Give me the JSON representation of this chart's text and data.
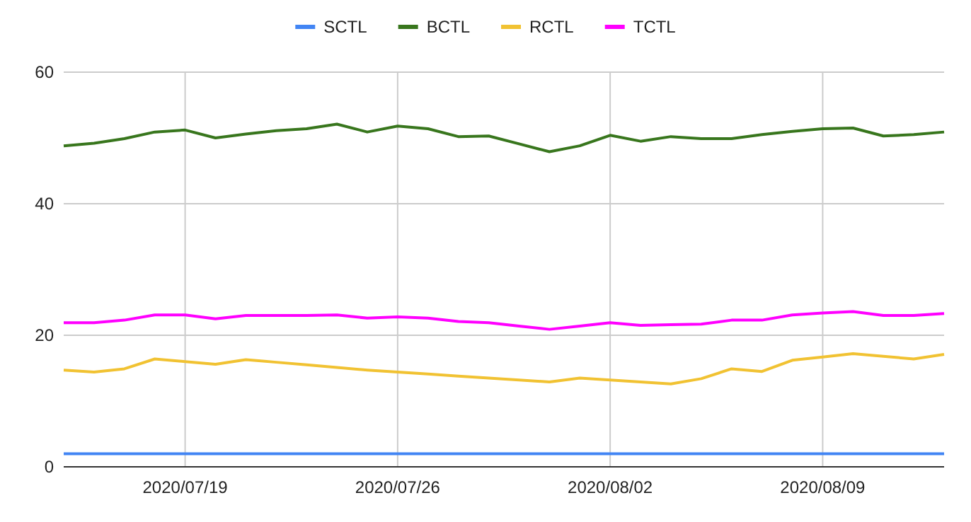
{
  "chart_data": {
    "type": "line",
    "x": [
      "2020-07-15",
      "2020-07-16",
      "2020-07-17",
      "2020-07-18",
      "2020-07-19",
      "2020-07-20",
      "2020-07-21",
      "2020-07-22",
      "2020-07-23",
      "2020-07-24",
      "2020-07-25",
      "2020-07-26",
      "2020-07-27",
      "2020-07-28",
      "2020-07-29",
      "2020-07-30",
      "2020-07-31",
      "2020-08-01",
      "2020-08-02",
      "2020-08-03",
      "2020-08-04",
      "2020-08-05",
      "2020-08-06",
      "2020-08-07",
      "2020-08-08",
      "2020-08-09",
      "2020-08-10",
      "2020-08-11",
      "2020-08-12",
      "2020-08-13"
    ],
    "series": [
      {
        "name": "SCTL",
        "color": "#4285f4",
        "values": [
          2,
          2,
          2,
          2,
          2,
          2,
          2,
          2,
          2,
          2,
          2,
          2,
          2,
          2,
          2,
          2,
          2,
          2,
          2,
          2,
          2,
          2,
          2,
          2,
          2,
          2,
          2,
          2,
          2,
          2
        ]
      },
      {
        "name": "BCTL",
        "color": "#38761d",
        "values": [
          48.8,
          49.2,
          49.9,
          50.9,
          51.2,
          50.0,
          50.6,
          51.1,
          51.4,
          52.1,
          50.9,
          51.8,
          51.4,
          50.2,
          50.3,
          49.1,
          47.9,
          48.8,
          50.4,
          49.5,
          50.2,
          49.9,
          49.9,
          50.5,
          51.0,
          51.4,
          51.5,
          50.3,
          50.5,
          50.9
        ]
      },
      {
        "name": "RCTL",
        "color": "#f1c232",
        "values": [
          14.7,
          14.4,
          14.9,
          16.4,
          16.0,
          15.6,
          16.3,
          15.9,
          15.5,
          15.1,
          14.7,
          14.4,
          14.1,
          13.8,
          13.5,
          13.2,
          12.9,
          13.5,
          13.2,
          12.9,
          12.6,
          13.4,
          14.9,
          14.5,
          16.2,
          16.7,
          17.2,
          16.8,
          16.4,
          17.1
        ]
      },
      {
        "name": "TCTL",
        "color": "#ff00ff",
        "values": [
          21.9,
          21.9,
          22.3,
          23.1,
          23.1,
          22.5,
          23.0,
          23.0,
          23.0,
          23.1,
          22.6,
          22.8,
          22.6,
          22.1,
          21.9,
          21.4,
          20.9,
          21.4,
          21.9,
          21.5,
          21.6,
          21.7,
          22.3,
          22.3,
          23.1,
          23.4,
          23.6,
          23.0,
          23.0,
          23.3
        ]
      }
    ],
    "xlim": [
      "2020-07-15",
      "2020-08-13"
    ],
    "xticks": [
      {
        "value": "2020-07-19",
        "label": "2020/07/19"
      },
      {
        "value": "2020-07-26",
        "label": "2020/07/26"
      },
      {
        "value": "2020-08-02",
        "label": "2020/08/02"
      },
      {
        "value": "2020-08-09",
        "label": "2020/08/09"
      }
    ],
    "ylim": [
      0,
      60
    ],
    "yticks": [
      0,
      20,
      40,
      60
    ],
    "grid": true,
    "legend": "top",
    "marker": "none",
    "line_style": "solid"
  }
}
